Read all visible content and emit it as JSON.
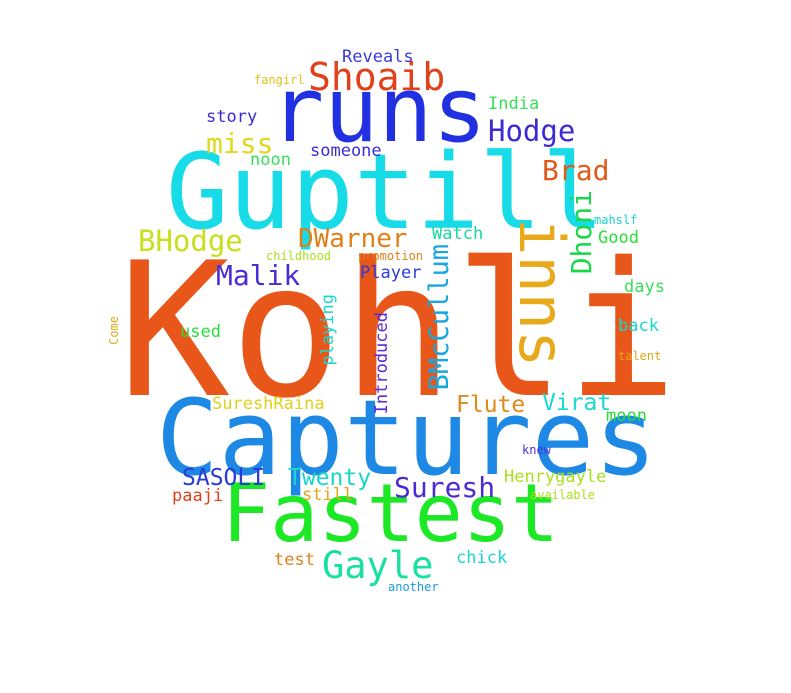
{
  "words": {
    "kohli": {
      "text": "Kohli",
      "color": "#e8561a"
    },
    "captures": {
      "text": "Captures",
      "color": "#1e88e5"
    },
    "fastest": {
      "text": "Fastest",
      "color": "#1de825"
    },
    "guptill": {
      "text": "Guptill",
      "color": "#18dbe8"
    },
    "runs": {
      "text": "runs",
      "color": "#2130e0"
    },
    "inns": {
      "text": "inns",
      "color": "#e8a91a"
    },
    "shoaib": {
      "text": "Shoaib",
      "color": "#e0401a"
    },
    "hodge": {
      "text": "Hodge",
      "color": "#3a2bd6"
    },
    "brad": {
      "text": "Brad",
      "color": "#e05a1a"
    },
    "miss": {
      "text": "miss",
      "color": "#e0d81a"
    },
    "bhodge": {
      "text": "BHodge",
      "color": "#c7e01a"
    },
    "dwarner": {
      "text": "DWarner",
      "color": "#e0801a"
    },
    "malik": {
      "text": "Malik",
      "color": "#4a2bd6"
    },
    "dhoni": {
      "text": "Dhoni",
      "color": "#18d84a"
    },
    "bmccullum": {
      "text": "BMcCullum",
      "color": "#1aa7e0"
    },
    "gayle": {
      "text": "Gayle",
      "color": "#18e0a0"
    },
    "suresh": {
      "text": "Suresh",
      "color": "#4a2bd6"
    },
    "sasoli": {
      "text": "SASOLI",
      "color": "#2a3ad6"
    },
    "twenty": {
      "text": "Twenty",
      "color": "#1ad6c8"
    },
    "flute": {
      "text": "Flute",
      "color": "#e08a1a"
    },
    "virat": {
      "text": "Virat",
      "color": "#18d8d0"
    },
    "reveals": {
      "text": "Reveals",
      "color": "#3a3ad6"
    },
    "india": {
      "text": "India",
      "color": "#38e05a"
    },
    "story": {
      "text": "story",
      "color": "#3a2bd6"
    },
    "someone": {
      "text": "someone",
      "color": "#3a2bd6"
    },
    "noon": {
      "text": "noon",
      "color": "#38e05a"
    },
    "fangirl": {
      "text": "fangirl",
      "color": "#e0c21a"
    },
    "watch": {
      "text": "Watch",
      "color": "#18d8a0"
    },
    "good": {
      "text": "Good",
      "color": "#28e038"
    },
    "mahslf": {
      "text": "mahslf",
      "color": "#18d8d0"
    },
    "player": {
      "text": "Player",
      "color": "#2a3ad6"
    },
    "childhood": {
      "text": "childhood",
      "color": "#a8e01a"
    },
    "promotion": {
      "text": "promotion",
      "color": "#e0801a"
    },
    "days": {
      "text": "days",
      "color": "#38e05a"
    },
    "back": {
      "text": "back",
      "color": "#18d8d0"
    },
    "talent": {
      "text": "talent",
      "color": "#e0a81a"
    },
    "used": {
      "text": "used",
      "color": "#28e038"
    },
    "playing": {
      "text": "playing",
      "color": "#18d8d0"
    },
    "introduced": {
      "text": "Introduced",
      "color": "#5a2ad6"
    },
    "come": {
      "text": "Come",
      "color": "#e0a81a"
    },
    "sureshraina": {
      "text": "SureshRaina",
      "color": "#e0d01a"
    },
    "moon": {
      "text": "moon",
      "color": "#28e038"
    },
    "knew": {
      "text": "knew",
      "color": "#4a2bd6"
    },
    "henrygayle": {
      "text": "Henrygayle",
      "color": "#a8e01a"
    },
    "paaji": {
      "text": "paaji",
      "color": "#e0401a"
    },
    "still": {
      "text": "still",
      "color": "#e0a81a"
    },
    "available": {
      "text": "available",
      "color": "#a8e01a"
    },
    "test": {
      "text": "test",
      "color": "#e0801a"
    },
    "chick": {
      "text": "chick",
      "color": "#18d8d0"
    },
    "another": {
      "text": "another",
      "color": "#1a98e0"
    }
  }
}
